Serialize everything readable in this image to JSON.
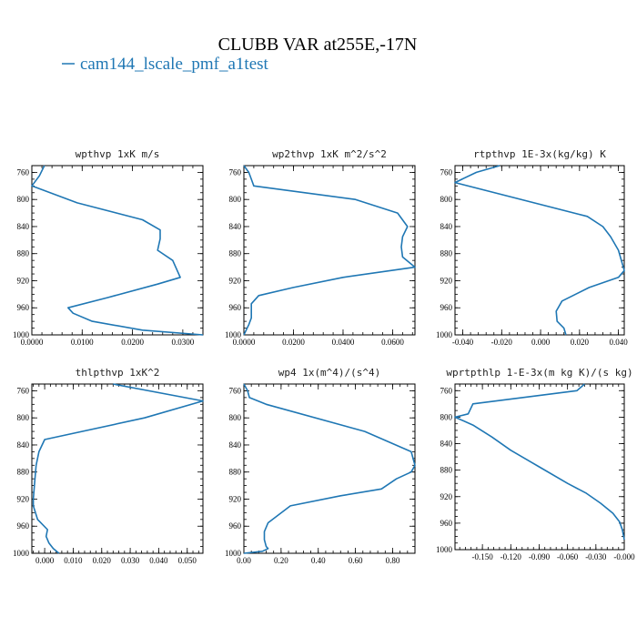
{
  "figure": {
    "title": "CLUBB VAR at255E,-17N",
    "legend": {
      "label": "cam144_lscale_pmf_a1test",
      "color": "#1f77b4"
    }
  },
  "chart_data": [
    {
      "type": "line",
      "title": "wpthvp  1xK m/s",
      "y_ticks": [
        "760",
        "800",
        "840",
        "880",
        "920",
        "960",
        "1000"
      ],
      "x_ticks": [
        "0.0000",
        "0.0100",
        "0.0200",
        "0.0300"
      ],
      "xlim": [
        0.0,
        0.034
      ],
      "ylim": [
        750,
        1000
      ],
      "series": [
        {
          "x": [
            0.0025,
            0.0015,
            0.0,
            0.009,
            0.022,
            0.0255,
            0.0255,
            0.025,
            0.028,
            0.0295,
            0.025,
            0.015,
            0.0072,
            0.0082,
            0.012,
            0.022,
            0.034
          ],
          "y": [
            750,
            765,
            780,
            805,
            830,
            845,
            858,
            875,
            890,
            915,
            925,
            945,
            960,
            968,
            980,
            993,
            1000
          ]
        }
      ]
    },
    {
      "type": "line",
      "title": "wp2thvp  1xK m^2/s^2",
      "y_ticks": [
        "760",
        "800",
        "840",
        "880",
        "920",
        "960",
        "1000"
      ],
      "x_ticks": [
        "0.0000",
        "0.0200",
        "0.0400",
        "0.0600"
      ],
      "xlim": [
        0.0,
        0.069
      ],
      "ylim": [
        750,
        1000
      ],
      "series": [
        {
          "x": [
            0.0,
            0.002,
            0.003,
            0.004,
            0.045,
            0.062,
            0.066,
            0.064,
            0.0635,
            0.064,
            0.069,
            0.04,
            0.02,
            0.006,
            0.003,
            0.003,
            0.003,
            0.002,
            0.0
          ],
          "y": [
            750,
            760,
            770,
            780,
            800,
            820,
            840,
            855,
            870,
            885,
            900,
            915,
            930,
            942,
            954,
            965,
            975,
            985,
            1000
          ]
        }
      ]
    },
    {
      "type": "line",
      "title": "rtpthvp  1E-3x(kg/kg) K",
      "y_ticks": [
        "760",
        "800",
        "840",
        "880",
        "920",
        "960",
        "1000"
      ],
      "x_ticks": [
        "-0.040",
        "-0.020",
        "0.000",
        "0.020",
        "0.040"
      ],
      "xlim": [
        -0.044,
        0.043
      ],
      "ylim": [
        750,
        1000
      ],
      "series": [
        {
          "x": [
            -0.021,
            -0.033,
            -0.044,
            0.024,
            0.032,
            0.036,
            0.04,
            0.043,
            0.04,
            0.025,
            0.011,
            0.008,
            0.0085,
            0.012,
            0.013
          ],
          "y": [
            750,
            760,
            775,
            825,
            840,
            855,
            875,
            905,
            915,
            930,
            950,
            965,
            980,
            990,
            1000
          ]
        }
      ]
    },
    {
      "type": "line",
      "title": "thlpthvp  1xK^2",
      "y_ticks": [
        "760",
        "800",
        "840",
        "880",
        "920",
        "960",
        "1000"
      ],
      "x_ticks": [
        "0.000",
        "0.010",
        "0.020",
        "0.030",
        "0.040",
        "0.050"
      ],
      "xlim": [
        -0.0045,
        0.0555
      ],
      "ylim": [
        750,
        1000
      ],
      "series": [
        {
          "x": [
            0.024,
            0.0555,
            0.035,
            0.0,
            -0.002,
            -0.003,
            -0.0035,
            -0.004,
            -0.004,
            -0.0025,
            0.001,
            0.0005,
            0.0015,
            0.003,
            0.005
          ],
          "y": [
            750,
            775,
            800,
            832,
            850,
            870,
            895,
            920,
            930,
            950,
            965,
            975,
            985,
            993,
            1000
          ]
        }
      ]
    },
    {
      "type": "line",
      "title": "wp4  1x(m^4)/(s^4)",
      "y_ticks": [
        "760",
        "800",
        "840",
        "880",
        "920",
        "960",
        "1000"
      ],
      "x_ticks": [
        "0.00",
        "0.20",
        "0.40",
        "0.60",
        "0.80"
      ],
      "xlim": [
        0.0,
        0.92
      ],
      "ylim": [
        750,
        1000
      ],
      "series": [
        {
          "x": [
            0.0,
            0.02,
            0.03,
            0.12,
            0.65,
            0.9,
            0.92,
            0.9,
            0.82,
            0.74,
            0.52,
            0.25,
            0.13,
            0.11,
            0.11,
            0.12,
            0.13,
            0.1,
            0.0
          ],
          "y": [
            750,
            760,
            770,
            780,
            820,
            850,
            870,
            880,
            890,
            905,
            915,
            930,
            955,
            968,
            980,
            990,
            993,
            997,
            1000
          ]
        }
      ]
    },
    {
      "type": "line",
      "title": "wprtpthlp  1-E-3x(m kg K)/(s kg)",
      "y_ticks": [
        "760",
        "800",
        "840",
        "880",
        "920",
        "960",
        "1000"
      ],
      "x_ticks": [
        "-0.150",
        "-0.120",
        "-0.090",
        "-0.060",
        "-0.030",
        "-0.000"
      ],
      "xlim": [
        -0.179,
        0.0
      ],
      "ylim": [
        750,
        1000
      ],
      "series": [
        {
          "x": [
            -0.042,
            -0.05,
            -0.16,
            -0.165,
            -0.179,
            -0.16,
            -0.14,
            -0.12,
            -0.09,
            -0.06,
            -0.04,
            -0.025,
            -0.012,
            -0.005,
            -0.002,
            0.0
          ],
          "y": [
            750,
            760,
            780,
            795,
            800,
            812,
            830,
            850,
            875,
            900,
            915,
            930,
            945,
            958,
            970,
            985
          ]
        }
      ]
    }
  ]
}
